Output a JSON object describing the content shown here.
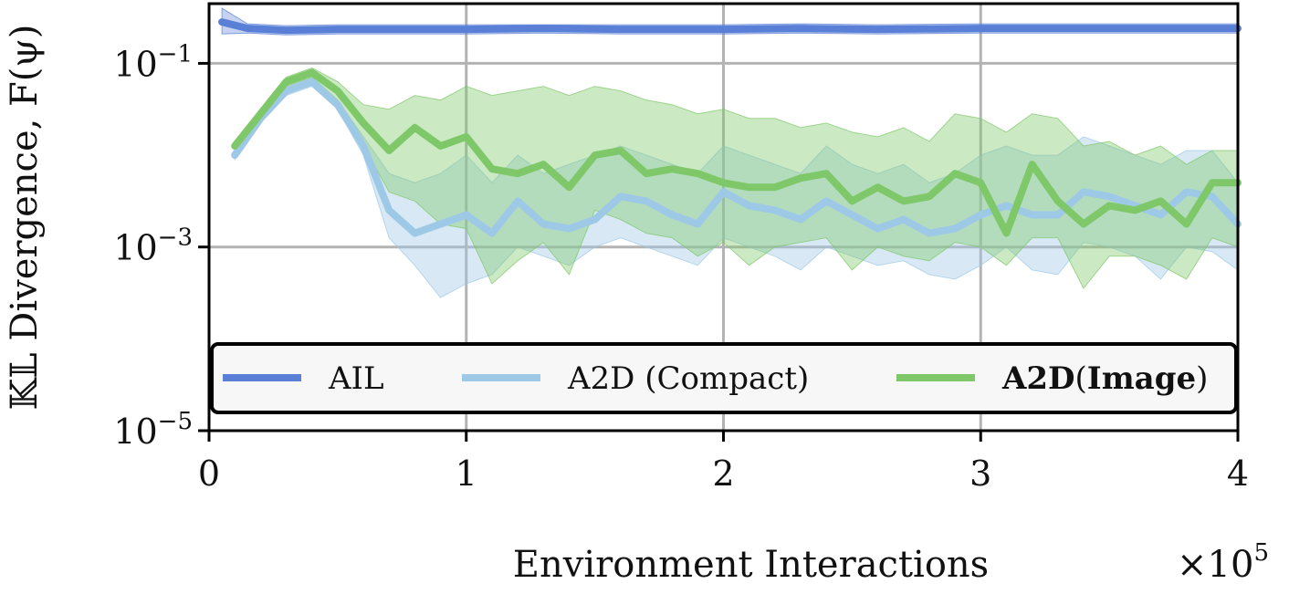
{
  "chart_data": {
    "type": "line",
    "xlabel": "Environment Interactions",
    "x_multiplier_label": "×10",
    "x_multiplier_exponent": "5",
    "ylabel": "𝕂𝕃 Divergence, F(ψ)",
    "y_scale": "log",
    "xlim": [
      0,
      4
    ],
    "ylim_log10": [
      -5,
      -0.35
    ],
    "x_ticks": [
      0,
      1,
      2,
      3,
      4
    ],
    "x_tick_labels": [
      "0",
      "1",
      "2",
      "3",
      "4"
    ],
    "y_ticks_log10": [
      -1,
      -3,
      -5
    ],
    "y_tick_base": "10",
    "y_tick_exponents": [
      "−1",
      "−3",
      "−5"
    ],
    "grid": true,
    "legend_position": "lower-center",
    "series": [
      {
        "name": "AIL",
        "color": "#5a7fd6",
        "band_color": "#5a7fd6",
        "x": [
          0.05,
          0.15,
          0.3,
          0.5,
          0.7,
          1,
          1.3,
          1.6,
          2,
          2.3,
          2.6,
          3,
          3.3,
          3.6,
          4
        ],
        "y_log10": [
          -0.55,
          -0.62,
          -0.64,
          -0.63,
          -0.63,
          -0.63,
          -0.62,
          -0.63,
          -0.63,
          -0.62,
          -0.63,
          -0.62,
          -0.62,
          -0.62,
          -0.62
        ],
        "upper_log10": [
          -0.4,
          -0.57,
          -0.59,
          -0.58,
          -0.58,
          -0.58,
          -0.58,
          -0.58,
          -0.58,
          -0.57,
          -0.58,
          -0.57,
          -0.57,
          -0.57,
          -0.57
        ],
        "lower_log10": [
          -0.68,
          -0.67,
          -0.69,
          -0.68,
          -0.68,
          -0.68,
          -0.67,
          -0.68,
          -0.68,
          -0.67,
          -0.68,
          -0.67,
          -0.67,
          -0.67,
          -0.67
        ]
      },
      {
        "name": "A2D (Compact)",
        "color": "#9ec9e6",
        "band_color": "#9ec9e6",
        "x": [
          0.1,
          0.2,
          0.3,
          0.4,
          0.5,
          0.6,
          0.7,
          0.8,
          0.9,
          1.0,
          1.1,
          1.2,
          1.3,
          1.4,
          1.5,
          1.6,
          1.7,
          1.8,
          1.9,
          2.0,
          2.1,
          2.2,
          2.3,
          2.4,
          2.5,
          2.6,
          2.7,
          2.8,
          2.9,
          3.0,
          3.1,
          3.2,
          3.3,
          3.4,
          3.5,
          3.6,
          3.7,
          3.8,
          3.9,
          4.0
        ],
        "y_log10": [
          -2.0,
          -1.6,
          -1.3,
          -1.2,
          -1.45,
          -1.9,
          -2.6,
          -2.85,
          -2.75,
          -2.65,
          -2.85,
          -2.5,
          -2.75,
          -2.8,
          -2.7,
          -2.45,
          -2.5,
          -2.65,
          -2.75,
          -2.4,
          -2.55,
          -2.6,
          -2.7,
          -2.5,
          -2.65,
          -2.8,
          -2.7,
          -2.85,
          -2.8,
          -2.65,
          -2.55,
          -2.65,
          -2.65,
          -2.4,
          -2.45,
          -2.55,
          -2.65,
          -2.4,
          -2.45,
          -2.75
        ],
        "upper_log10": [
          -1.95,
          -1.55,
          -1.25,
          -1.15,
          -1.4,
          -1.8,
          -2.2,
          -2.3,
          -2.2,
          -2.0,
          -2.3,
          -2.0,
          -2.2,
          -2.1,
          -2.0,
          -1.9,
          -2.0,
          -2.1,
          -2.2,
          -1.9,
          -2.0,
          -2.1,
          -2.2,
          -1.9,
          -2.1,
          -2.2,
          -2.1,
          -2.3,
          -2.2,
          -2.0,
          -1.9,
          -2.0,
          -2.0,
          -1.8,
          -1.9,
          -2.0,
          -2.1,
          -1.95,
          -1.95,
          -2.3
        ],
        "lower_log10": [
          -2.05,
          -1.65,
          -1.35,
          -1.25,
          -1.5,
          -2.0,
          -2.9,
          -3.2,
          -3.55,
          -3.4,
          -3.3,
          -3.0,
          -3.1,
          -3.2,
          -3.0,
          -2.9,
          -3.0,
          -3.1,
          -3.2,
          -2.9,
          -3.0,
          -3.1,
          -3.25,
          -3.0,
          -3.1,
          -3.2,
          -3.15,
          -3.3,
          -3.35,
          -3.2,
          -3.0,
          -3.25,
          -3.3,
          -2.95,
          -3.0,
          -3.1,
          -3.35,
          -3.0,
          -3.05,
          -3.25
        ]
      },
      {
        "name": "A2D(Image)",
        "color": "#7ec86a",
        "band_color": "#7ec86a",
        "x": [
          0.1,
          0.2,
          0.3,
          0.4,
          0.5,
          0.6,
          0.7,
          0.8,
          0.9,
          1.0,
          1.1,
          1.2,
          1.3,
          1.4,
          1.5,
          1.6,
          1.7,
          1.8,
          1.9,
          2.0,
          2.1,
          2.2,
          2.3,
          2.4,
          2.5,
          2.6,
          2.7,
          2.8,
          2.9,
          3.0,
          3.1,
          3.2,
          3.3,
          3.4,
          3.5,
          3.6,
          3.7,
          3.8,
          3.9,
          4.0
        ],
        "y_log10": [
          -1.9,
          -1.55,
          -1.2,
          -1.1,
          -1.3,
          -1.65,
          -1.95,
          -1.7,
          -1.9,
          -1.8,
          -2.15,
          -2.2,
          -2.1,
          -2.35,
          -2.0,
          -1.95,
          -2.2,
          -2.15,
          -2.2,
          -2.3,
          -2.35,
          -2.35,
          -2.25,
          -2.2,
          -2.5,
          -2.35,
          -2.5,
          -2.45,
          -2.2,
          -2.3,
          -2.85,
          -2.1,
          -2.5,
          -2.75,
          -2.55,
          -2.6,
          -2.5,
          -2.75,
          -2.3,
          -2.3
        ],
        "upper_log10": [
          -1.85,
          -1.5,
          -1.15,
          -1.05,
          -1.2,
          -1.45,
          -1.5,
          -1.35,
          -1.4,
          -1.25,
          -1.35,
          -1.3,
          -1.25,
          -1.35,
          -1.25,
          -1.3,
          -1.4,
          -1.45,
          -1.55,
          -1.5,
          -1.6,
          -1.6,
          -1.7,
          -1.65,
          -1.75,
          -1.8,
          -1.7,
          -1.85,
          -1.55,
          -1.6,
          -1.75,
          -1.55,
          -1.6,
          -1.9,
          -1.85,
          -2.0,
          -1.9,
          -2.1,
          -1.95,
          -1.95
        ],
        "lower_log10": [
          -1.95,
          -1.6,
          -1.25,
          -1.15,
          -1.4,
          -1.9,
          -2.4,
          -2.5,
          -2.75,
          -2.8,
          -3.4,
          -3.15,
          -2.95,
          -3.3,
          -2.6,
          -2.7,
          -2.85,
          -2.9,
          -3.1,
          -2.95,
          -3.2,
          -3.0,
          -2.95,
          -2.9,
          -3.25,
          -3.0,
          -3.1,
          -3.15,
          -2.95,
          -3.0,
          -3.2,
          -2.9,
          -2.9,
          -3.45,
          -3.1,
          -3.1,
          -3.2,
          -3.35,
          -2.9,
          -3.0
        ]
      }
    ],
    "legend": [
      {
        "label": "AIL",
        "bold": false
      },
      {
        "label": "A2D (Compact)",
        "bold": false
      },
      {
        "label_parts": [
          "A2D",
          "(",
          "Image",
          ")"
        ],
        "bold_parts": [
          true,
          false,
          true,
          false
        ]
      }
    ]
  }
}
